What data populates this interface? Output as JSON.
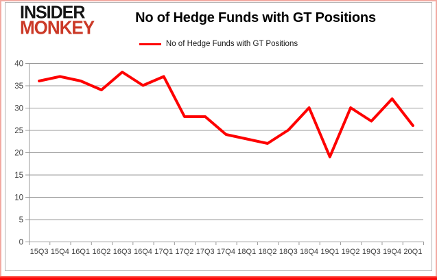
{
  "logo": {
    "line1": "INSIDER",
    "line2": "MONKEY"
  },
  "header": {
    "title": "No of Hedge Funds with GT Positions"
  },
  "legend": {
    "label": "No of Hedge Funds with GT Positions"
  },
  "chart_data": {
    "type": "line",
    "title": "No of Hedge Funds with GT Positions",
    "series": [
      {
        "name": "No of Hedge Funds with GT Positions",
        "values": [
          36,
          37,
          36,
          34,
          38,
          35,
          37,
          28,
          28,
          24,
          23,
          22,
          25,
          30,
          19,
          30,
          27,
          32,
          26
        ]
      }
    ],
    "categories": [
      "15Q3",
      "15Q4",
      "16Q1",
      "16Q2",
      "16Q3",
      "16Q4",
      "17Q1",
      "17Q2",
      "17Q3",
      "17Q4",
      "18Q1",
      "18Q2",
      "18Q3",
      "18Q4",
      "19Q1",
      "19Q2",
      "19Q3",
      "19Q4",
      "20Q1"
    ],
    "xlabel": "",
    "ylabel": "",
    "ylim": [
      0,
      40
    ],
    "yticks": [
      0,
      5,
      10,
      15,
      20,
      25,
      30,
      35,
      40
    ],
    "grid": true,
    "legend_position": "top"
  },
  "colors": {
    "line": "#fe0000",
    "logo_red": "#cb3927",
    "logo_black": "#151515",
    "frame_pink": "#f2aaa2",
    "bottom_strip_red": "#fb0b0b",
    "gridline": "#9a9a9a",
    "axis_text": "#3f3f3f",
    "chart_border": "#b3b3b3",
    "title_color": "#000000"
  }
}
